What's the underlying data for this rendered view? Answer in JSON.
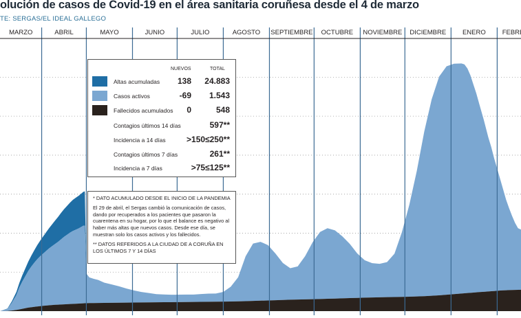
{
  "header": {
    "title": "olución de casos de Covid-19 en el área sanitaria coruñesa desde el 4 de marzo",
    "source": "TE: SERGAS/EL IDEAL GALLEGO"
  },
  "chart_data": {
    "type": "area",
    "title": "olución de casos de Covid-19 en el área sanitaria coruñesa desde el 4 de marzo",
    "months": [
      "MARZO",
      "ABRIL",
      "MAYO",
      "JUNIO",
      "JULIO",
      "AGOSTO",
      "SEPTIEMBRE",
      "OCTUBRE",
      "NOVIEMBRE",
      "DICIEMBRE",
      "ENERO",
      "FEBRERO"
    ],
    "x": [
      0,
      5,
      8,
      11,
      13,
      15,
      17,
      19,
      21,
      23,
      25,
      27,
      29,
      31,
      33,
      35,
      37,
      39,
      41,
      43,
      45,
      47,
      49,
      51,
      53,
      55,
      56,
      57,
      58,
      60,
      63,
      66,
      70,
      75,
      80,
      85,
      90,
      95,
      100,
      105,
      110,
      115,
      120,
      125,
      130,
      135,
      140,
      145,
      150,
      155,
      160,
      165,
      170,
      175,
      180,
      185,
      190,
      195,
      200,
      205,
      210,
      215,
      220,
      225,
      230,
      235,
      240,
      245,
      250,
      255,
      260,
      265,
      270,
      275,
      280,
      285,
      290,
      295,
      300,
      305,
      310,
      312,
      314,
      316,
      318,
      320,
      322,
      325,
      328,
      330,
      332,
      334,
      336,
      338,
      340,
      342,
      344,
      346,
      348,
      350
    ],
    "series": [
      {
        "name": "Casos activos",
        "color": "#7ba7d1",
        "values": [
          0,
          50,
          200,
          380,
          560,
          700,
          820,
          940,
          1040,
          1130,
          1210,
          1280,
          1340,
          1400,
          1460,
          1510,
          1560,
          1610,
          1670,
          1730,
          1780,
          1830,
          1870,
          1900,
          1930,
          1970,
          1990,
          1990,
          760,
          660,
          620,
          590,
          520,
          470,
          420,
          360,
          310,
          270,
          240,
          210,
          200,
          190,
          190,
          190,
          190,
          200,
          210,
          210,
          250,
          380,
          620,
          1150,
          1470,
          1510,
          1420,
          1200,
          950,
          810,
          850,
          1110,
          1460,
          1720,
          1810,
          1750,
          1590,
          1390,
          1140,
          960,
          880,
          860,
          900,
          1110,
          1660,
          2360,
          3220,
          4220,
          5040,
          5610,
          5860,
          5910,
          5900,
          5870,
          5760,
          5580,
          5340,
          5100,
          4820,
          4410,
          3960,
          3700,
          3400,
          3130,
          2860,
          2590,
          2320,
          2100,
          1900,
          1720,
          1580,
          1543
        ]
      },
      {
        "name": "Altas acumuladas",
        "color": "#1f6ea5",
        "values": [
          0,
          10,
          40,
          80,
          120,
          160,
          200,
          240,
          280,
          320,
          360,
          400,
          440,
          480,
          520,
          560,
          600,
          640,
          680,
          710,
          740,
          770,
          800,
          820,
          840,
          860,
          870,
          880,
          0,
          0,
          0,
          0,
          0,
          0,
          0,
          0,
          0,
          0,
          0,
          0,
          0,
          0,
          0,
          0,
          0,
          0,
          0,
          0,
          0,
          0,
          0,
          0,
          0,
          0,
          0,
          0,
          0,
          0,
          0,
          0,
          0,
          0,
          0,
          0,
          0,
          0,
          0,
          0,
          0,
          0,
          0,
          0,
          0,
          0,
          0,
          0,
          0,
          0,
          0,
          0,
          0,
          0,
          0,
          0,
          0,
          0,
          0,
          0,
          0,
          0,
          0,
          0,
          0,
          0,
          0,
          0,
          0,
          0,
          0,
          0
        ]
      },
      {
        "name": "Fallecidos acumulados",
        "color": "#2a221d",
        "values": [
          0,
          5,
          15,
          30,
          45,
          60,
          75,
          90,
          100,
          110,
          120,
          128,
          136,
          144,
          150,
          156,
          162,
          166,
          170,
          174,
          178,
          182,
          186,
          190,
          194,
          198,
          200,
          202,
          204,
          206,
          208,
          210,
          212,
          214,
          216,
          218,
          220,
          222,
          224,
          226,
          228,
          230,
          232,
          234,
          236,
          238,
          240,
          242,
          244,
          246,
          250,
          256,
          262,
          268,
          274,
          280,
          286,
          292,
          298,
          302,
          306,
          310,
          316,
          322,
          328,
          334,
          340,
          346,
          350,
          354,
          358,
          362,
          366,
          370,
          376,
          384,
          394,
          406,
          420,
          436,
          452,
          458,
          464,
          470,
          476,
          482,
          488,
          496,
          504,
          510,
          516,
          522,
          528,
          532,
          536,
          540,
          542,
          544,
          546,
          548
        ]
      }
    ],
    "ylim": [
      0,
      6500
    ],
    "grid": true
  },
  "stats": {
    "hdr_new": "NUEVOS",
    "hdr_total": "TOTAL",
    "rows": [
      {
        "label": "Altas acumuladas",
        "new": "138",
        "total": "24.883",
        "color": "#1f6ea5"
      },
      {
        "label": "Casos activos",
        "new": "-69",
        "total": "1.543",
        "color": "#7ba7d1"
      },
      {
        "label": "Fallecidos acumulados",
        "new": "0",
        "total": "548",
        "color": "#2a221d"
      }
    ],
    "extra": [
      {
        "label": "Contagios últimos 14 días",
        "value": "597**"
      },
      {
        "label": "Incidencia a 14 días",
        "value": ">150≤250**"
      },
      {
        "label": "Contagios últimos 7 días",
        "value": "261**"
      },
      {
        "label": "Incidencia a 7 días",
        "value": ">75≤125**"
      }
    ]
  },
  "notes": {
    "n1": "* DATO ACUMULADO DESDE EL INICIO DE LA PANDEMIA",
    "n2": "El 29 de abril, el Sergas cambió la comunicación de casos, dando por recuperados a los pacientes que pasaron la cuarentena en su hogar, por lo que el balance es negativo al haber más altas que nuevos casos. Desde ese día, se muestran solo los casos activos y los fallecidos.",
    "n3": "** DATOS REFERIDOS A LA CIUDAD DE A CORUÑA EN LOS ÚLTIMOS 7 Y 14 DÍAS"
  }
}
